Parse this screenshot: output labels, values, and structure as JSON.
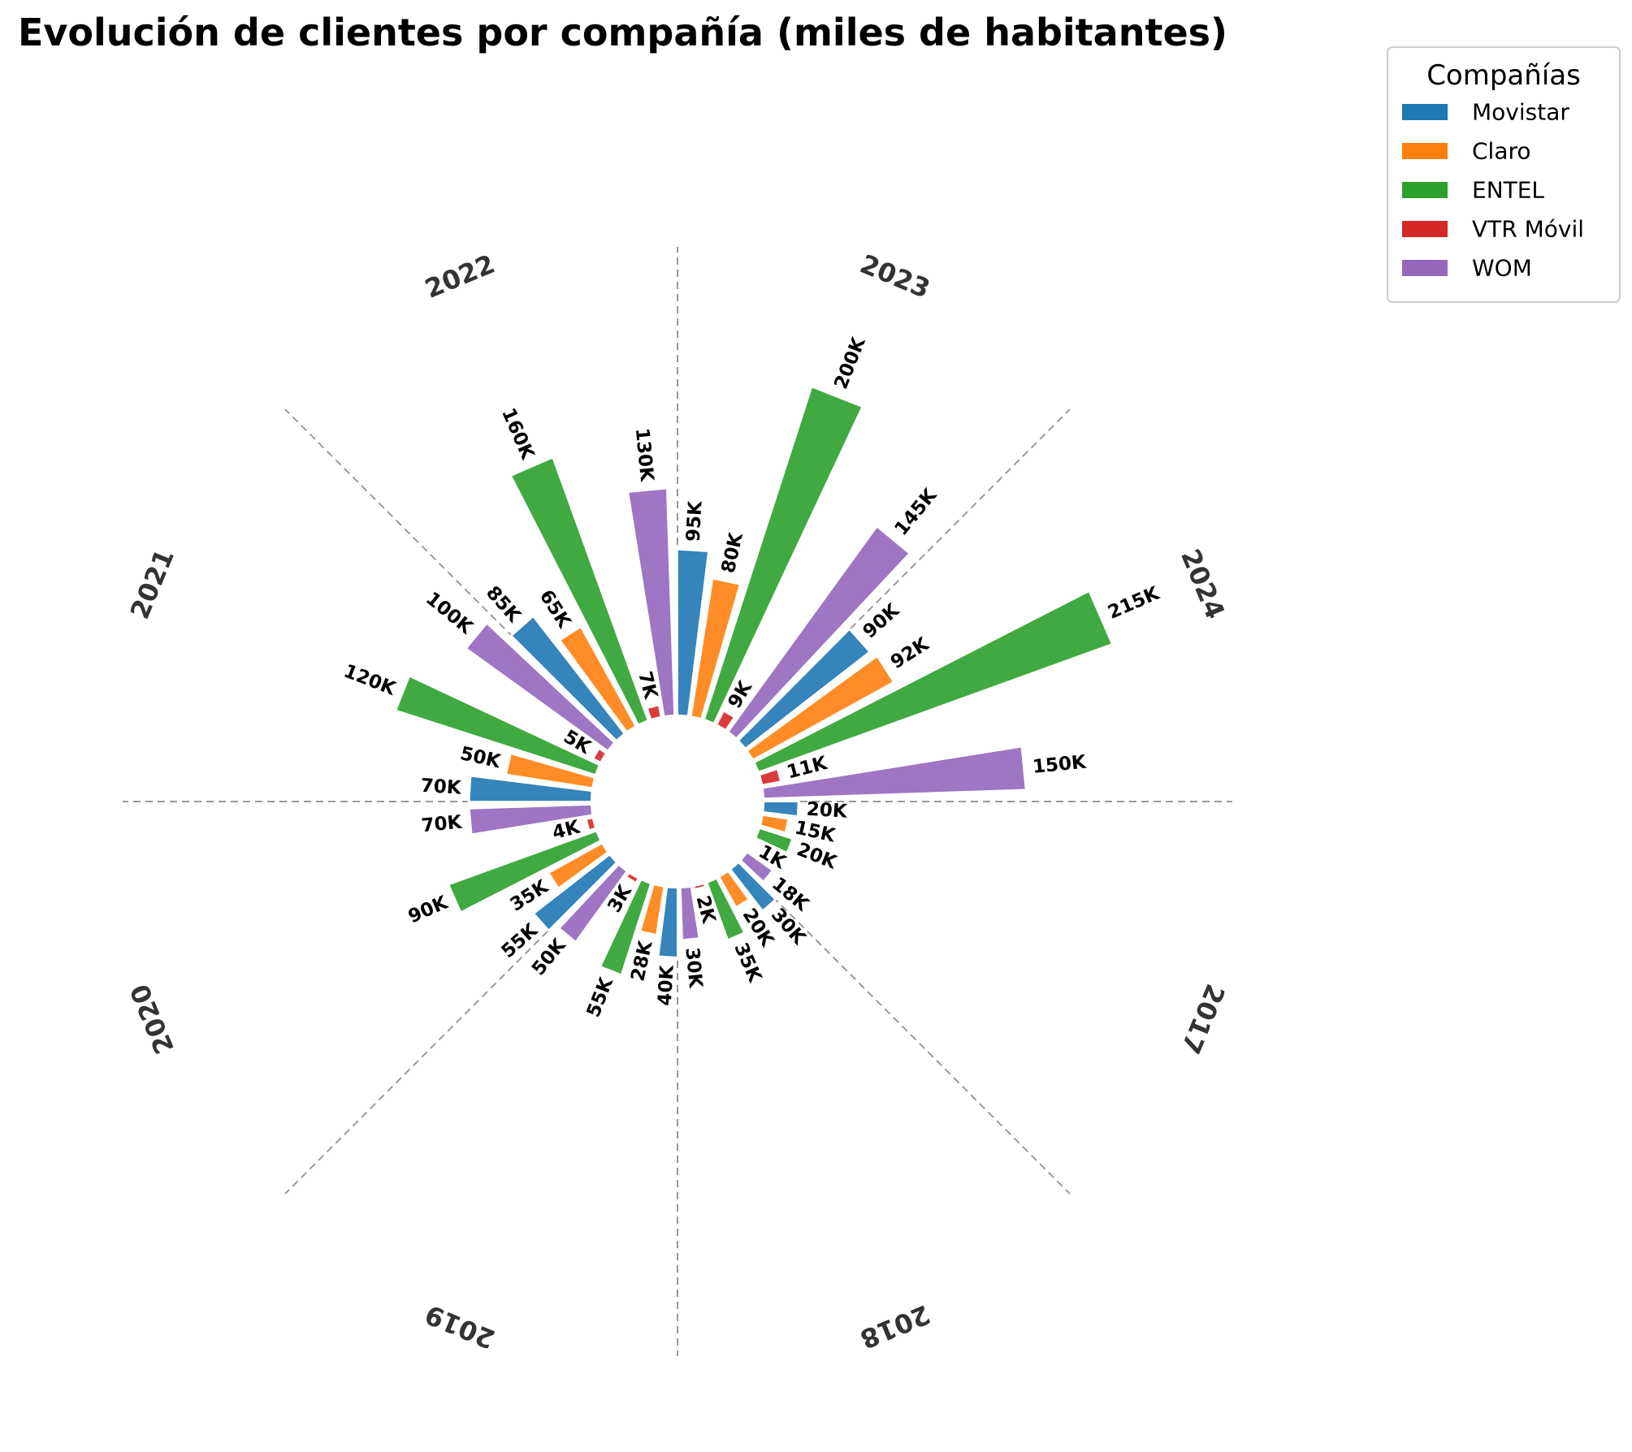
{
  "chart_data": {
    "type": "bar",
    "layout": "polar",
    "title": "Evolución de clientes por compañía (miles de habitantes)",
    "categories": [
      "2017",
      "2018",
      "2019",
      "2020",
      "2021",
      "2022",
      "2023",
      "2024"
    ],
    "series": [
      {
        "name": "Movistar",
        "color": "#1f77b4",
        "values": [
          20,
          30,
          40,
          55,
          70,
          85,
          95,
          90
        ],
        "labels": [
          "20K",
          "30K",
          "40K",
          "55K",
          "70K",
          "85K",
          "95K",
          "90K"
        ]
      },
      {
        "name": "Claro",
        "color": "#ff7f0e",
        "values": [
          15,
          20,
          28,
          35,
          50,
          65,
          80,
          92
        ],
        "labels": [
          "15K",
          "20K",
          "28K",
          "35K",
          "50K",
          "65K",
          "80K",
          "92K"
        ]
      },
      {
        "name": "ENTEL",
        "color": "#2ca02c",
        "values": [
          20,
          35,
          55,
          90,
          120,
          160,
          200,
          215
        ],
        "labels": [
          "20K",
          "35K",
          "55K",
          "90K",
          "120K",
          "160K",
          "200K",
          "215K"
        ]
      },
      {
        "name": "VTR Móvil",
        "color": "#d62728",
        "values": [
          1,
          2,
          3,
          4,
          5,
          7,
          9,
          11
        ],
        "labels": [
          "1K",
          "2K",
          "3K",
          "4K",
          "5K",
          "7K",
          "9K",
          "11K"
        ]
      },
      {
        "name": "WOM",
        "color": "#9467bd",
        "values": [
          18,
          30,
          50,
          70,
          100,
          130,
          145,
          150
        ],
        "labels": [
          "18K",
          "30K",
          "50K",
          "70K",
          "100K",
          "130K",
          "145K",
          "150K"
        ]
      }
    ],
    "legend": {
      "title": "Compañías",
      "position": "top-right"
    },
    "grid": false,
    "sector_dividers": true
  }
}
